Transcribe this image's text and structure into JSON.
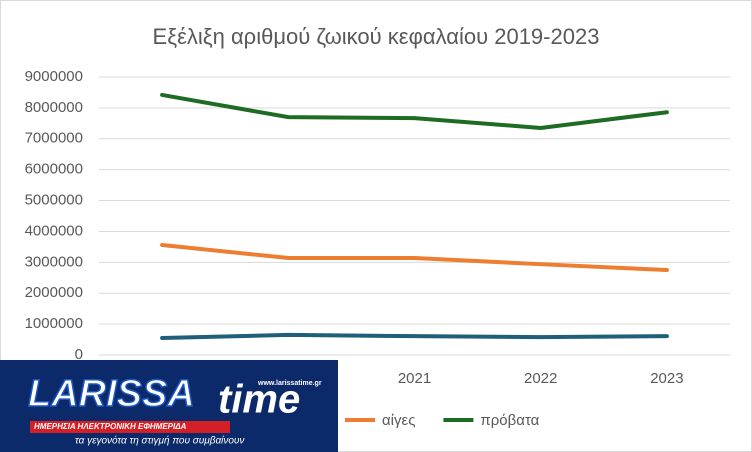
{
  "chart_data": {
    "type": "line",
    "title": "Εξέλιξη αριθμού ζωικού κεφαλαίου 2019-2023",
    "categories": [
      null,
      null,
      "2021",
      "2022",
      "2023"
    ],
    "series": [
      {
        "color": "#1f5f7a",
        "values": [
          550000,
          650000,
          610000,
          580000,
          610000
        ]
      },
      {
        "name": "αίγες",
        "color": "#ed7d31",
        "values": [
          3560000,
          3140000,
          3140000,
          2940000,
          2750000
        ]
      },
      {
        "name": "πρόβατα",
        "color": "#1e6b24",
        "values": [
          8420000,
          7700000,
          7670000,
          7350000,
          7860000
        ]
      }
    ],
    "ylim": [
      0,
      9000000
    ],
    "yticks": [
      0,
      1000000,
      2000000,
      3000000,
      4000000,
      5000000,
      6000000,
      7000000,
      8000000,
      9000000
    ],
    "grid": true,
    "legend": "bottom"
  },
  "logo": {
    "brand": "LARISSA",
    "brand2": "time",
    "url": "www.larissatime.gr",
    "subtitle": "ΗΜΕΡΗΣΙΑ ΗΛΕΚΤΡΟΝΙΚΗ ΕΦΗΜΕΡΙΔΑ",
    "tagline": "τα γεγονότα τη στιγμή που συμβαίνουν"
  }
}
